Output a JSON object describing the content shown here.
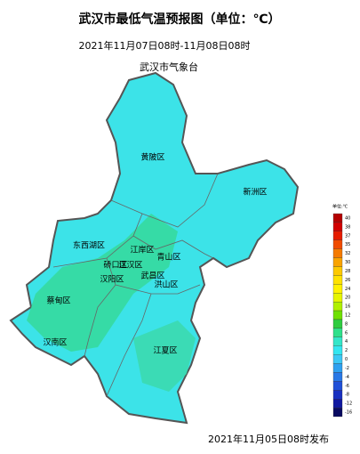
{
  "header": {
    "title": "武汉市最低气温预报图（单位：℃）",
    "period": "2021年11月07日08时-11月08日08时",
    "issuer": "武汉市气象台"
  },
  "districts": [
    "黄陂区",
    "新洲区",
    "东西湖区",
    "江岸区",
    "青山区",
    "硚口区",
    "江汉区",
    "汉阳区",
    "武昌区",
    "洪山区",
    "蔡甸区",
    "汉南区",
    "江夏区"
  ],
  "legend": {
    "title": "单位:℃",
    "labels": [
      40,
      38,
      37,
      35,
      32,
      30,
      28,
      26,
      24,
      20,
      16,
      12,
      8,
      6,
      4,
      2,
      0,
      -2,
      -4,
      -6,
      -8,
      -12,
      -16
    ],
    "colors": [
      "#b40000",
      "#d10000",
      "#e61c00",
      "#f04b00",
      "#f57a00",
      "#f9a300",
      "#fdc900",
      "#ffe200",
      "#fff200",
      "#e6f500",
      "#b0f000",
      "#6fe000",
      "#2ecc40",
      "#2ee08a",
      "#33e6c8",
      "#33e6f0",
      "#3cc8f5",
      "#2ea0f0",
      "#2878e6",
      "#2050d8",
      "#1830c0",
      "#1018a0",
      "#080a60"
    ]
  },
  "footer": "2021年11月05日08时发布"
}
